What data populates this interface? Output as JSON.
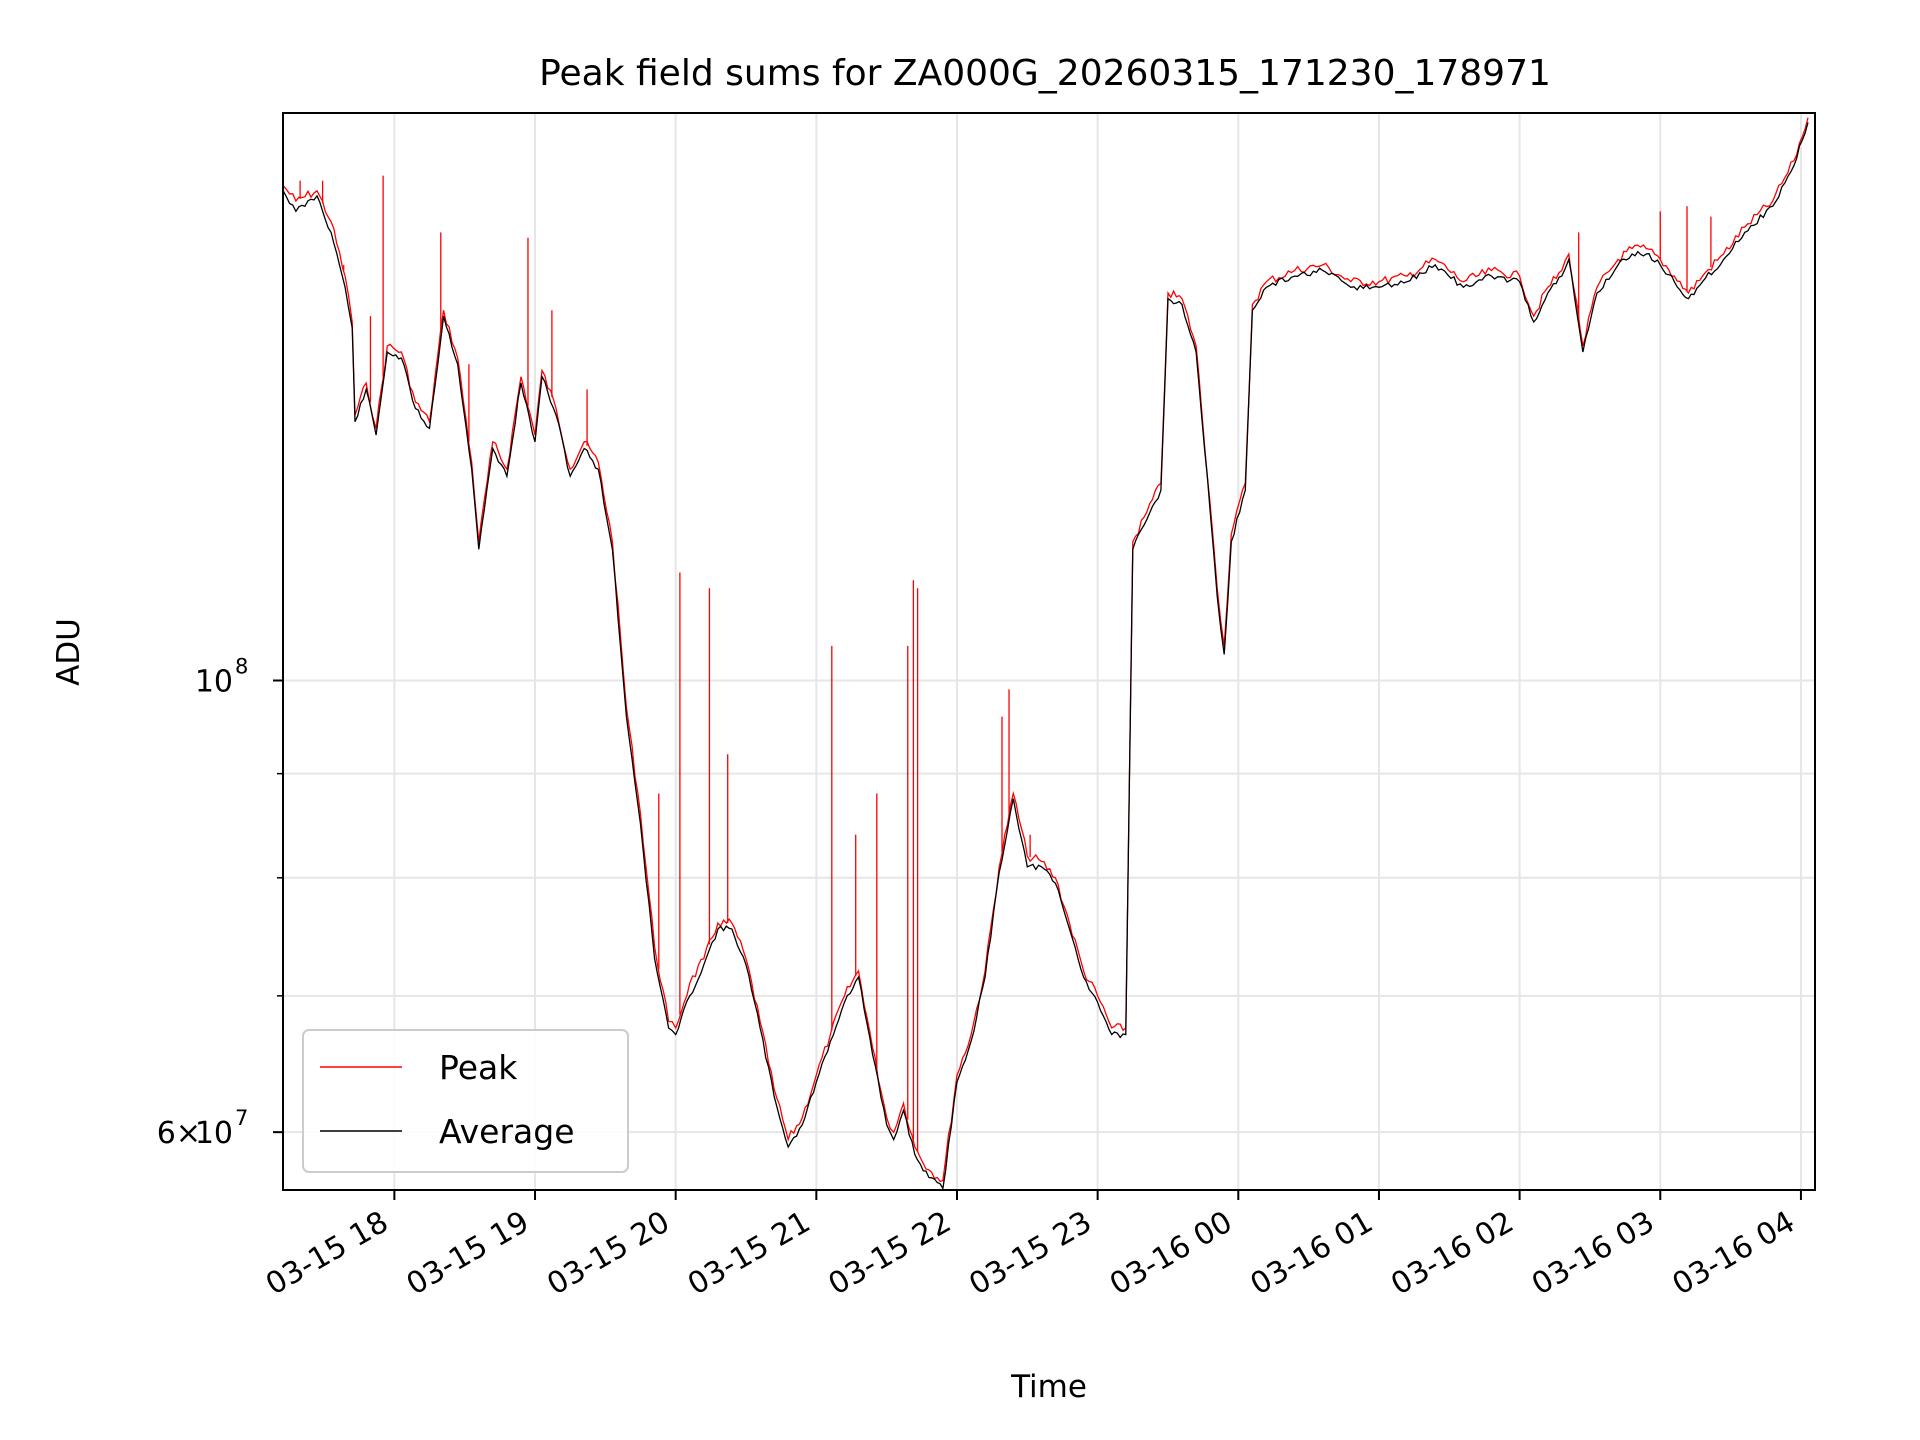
{
  "chart_data": {
    "type": "line",
    "title": "Peak field sums for ZA000G_20260315_171230_178971",
    "xlabel": "Time",
    "ylabel": "ADU",
    "y_scale": "log",
    "xlim_hours": [
      17.2083,
      28.1
    ],
    "ylim": [
      56200000,
      190000000
    ],
    "grid": true,
    "legend_position": "lower-left",
    "x_ticks": [
      {
        "hour": 18,
        "label": "03-15 18"
      },
      {
        "hour": 19,
        "label": "03-15 19"
      },
      {
        "hour": 20,
        "label": "03-15 20"
      },
      {
        "hour": 21,
        "label": "03-15 21"
      },
      {
        "hour": 22,
        "label": "03-15 22"
      },
      {
        "hour": 23,
        "label": "03-15 23"
      },
      {
        "hour": 24,
        "label": "03-16 00"
      },
      {
        "hour": 25,
        "label": "03-16 01"
      },
      {
        "hour": 26,
        "label": "03-16 02"
      },
      {
        "hour": 27,
        "label": "03-16 03"
      },
      {
        "hour": 28,
        "label": "03-16 04"
      }
    ],
    "y_major_ticks": [
      {
        "value": 60000000,
        "mantissa": "6",
        "exponent": "7"
      },
      {
        "value": 100000000,
        "mantissa": "",
        "exponent": "8"
      }
    ],
    "y_minor_ticks": [
      70000000,
      80000000,
      90000000
    ],
    "series": [
      {
        "name": "Peak",
        "color": "#ff0000",
        "points": [
          [
            17.21,
            175000000
          ],
          [
            17.3,
            172000000
          ],
          [
            17.45,
            174000000
          ],
          [
            17.55,
            168000000
          ],
          [
            17.65,
            158000000
          ],
          [
            17.7,
            150000000
          ],
          [
            17.72,
            135000000
          ],
          [
            17.8,
            140000000
          ],
          [
            17.87,
            133000000
          ],
          [
            17.95,
            146000000
          ],
          [
            18.05,
            145000000
          ],
          [
            18.15,
            137000000
          ],
          [
            18.25,
            134000000
          ],
          [
            18.35,
            152000000
          ],
          [
            18.45,
            144000000
          ],
          [
            18.55,
            128000000
          ],
          [
            18.6,
            117000000
          ],
          [
            18.7,
            131000000
          ],
          [
            18.8,
            127000000
          ],
          [
            18.9,
            141000000
          ],
          [
            19.0,
            132000000
          ],
          [
            19.05,
            142000000
          ],
          [
            19.15,
            136000000
          ],
          [
            19.25,
            127000000
          ],
          [
            19.35,
            131000000
          ],
          [
            19.45,
            128000000
          ],
          [
            19.55,
            117000000
          ],
          [
            19.65,
            97000000
          ],
          [
            19.75,
            86000000
          ],
          [
            19.85,
            74000000
          ],
          [
            19.95,
            68000000
          ],
          [
            20.0,
            67500000
          ],
          [
            20.1,
            71000000
          ],
          [
            20.2,
            73000000
          ],
          [
            20.3,
            76000000
          ],
          [
            20.4,
            76000000
          ],
          [
            20.5,
            73000000
          ],
          [
            20.6,
            68000000
          ],
          [
            20.7,
            63000000
          ],
          [
            20.8,
            59500000
          ],
          [
            20.9,
            61000000
          ],
          [
            21.0,
            64000000
          ],
          [
            21.1,
            67000000
          ],
          [
            21.2,
            70000000
          ],
          [
            21.3,
            72000000
          ],
          [
            21.4,
            66000000
          ],
          [
            21.5,
            61000000
          ],
          [
            21.55,
            60000000
          ],
          [
            21.62,
            62000000
          ],
          [
            21.7,
            59000000
          ],
          [
            21.8,
            57500000
          ],
          [
            21.9,
            56800000
          ],
          [
            22.0,
            64000000
          ],
          [
            22.1,
            67000000
          ],
          [
            22.2,
            72000000
          ],
          [
            22.3,
            81000000
          ],
          [
            22.4,
            88000000
          ],
          [
            22.5,
            82000000
          ],
          [
            22.6,
            81500000
          ],
          [
            22.7,
            80000000
          ],
          [
            22.8,
            76000000
          ],
          [
            22.9,
            72000000
          ],
          [
            23.0,
            70000000
          ],
          [
            23.1,
            67500000
          ],
          [
            23.2,
            67500000
          ],
          [
            23.25,
            117000000
          ],
          [
            23.35,
            121000000
          ],
          [
            23.45,
            125000000
          ],
          [
            23.5,
            155000000
          ],
          [
            23.6,
            154000000
          ],
          [
            23.7,
            146000000
          ],
          [
            23.8,
            122000000
          ],
          [
            23.85,
            111000000
          ],
          [
            23.9,
            104000000
          ],
          [
            23.95,
            118000000
          ],
          [
            24.05,
            125000000
          ],
          [
            24.1,
            153000000
          ],
          [
            24.2,
            157000000
          ],
          [
            24.4,
            159000000
          ],
          [
            24.6,
            160000000
          ],
          [
            24.8,
            157000000
          ],
          [
            25.0,
            157000000
          ],
          [
            25.2,
            158000000
          ],
          [
            25.4,
            161000000
          ],
          [
            25.6,
            157000000
          ],
          [
            25.8,
            159000000
          ],
          [
            26.0,
            158000000
          ],
          [
            26.1,
            151000000
          ],
          [
            26.2,
            156000000
          ],
          [
            26.3,
            159000000
          ],
          [
            26.35,
            162000000
          ],
          [
            26.45,
            146000000
          ],
          [
            26.55,
            156000000
          ],
          [
            26.7,
            161000000
          ],
          [
            26.8,
            163000000
          ],
          [
            26.9,
            163000000
          ],
          [
            27.0,
            161000000
          ],
          [
            27.1,
            158000000
          ],
          [
            27.2,
            155000000
          ],
          [
            27.3,
            158000000
          ],
          [
            27.45,
            162000000
          ],
          [
            27.6,
            167000000
          ],
          [
            27.8,
            172000000
          ],
          [
            27.95,
            180000000
          ],
          [
            28.05,
            189000000
          ]
        ],
        "spikes": [
          [
            17.33,
            176000000
          ],
          [
            17.49,
            176000000
          ],
          [
            17.64,
            160000000
          ],
          [
            17.83,
            151000000
          ],
          [
            17.92,
            177000000
          ],
          [
            18.33,
            166000000
          ],
          [
            18.53,
            143000000
          ],
          [
            18.95,
            165000000
          ],
          [
            19.12,
            152000000
          ],
          [
            19.37,
            139000000
          ],
          [
            19.88,
            88000000
          ],
          [
            20.03,
            113000000
          ],
          [
            20.24,
            111000000
          ],
          [
            20.37,
            92000000
          ],
          [
            21.11,
            104000000
          ],
          [
            21.28,
            84000000
          ],
          [
            21.43,
            88000000
          ],
          [
            21.65,
            104000000
          ],
          [
            21.69,
            112000000
          ],
          [
            21.72,
            111000000
          ],
          [
            22.32,
            96000000
          ],
          [
            22.37,
            99000000
          ],
          [
            22.52,
            84000000
          ],
          [
            27.0,
            170000000
          ],
          [
            27.19,
            171000000
          ],
          [
            27.36,
            169000000
          ],
          [
            26.42,
            166000000
          ]
        ]
      },
      {
        "name": "Average",
        "color": "#000000",
        "points": [
          [
            17.21,
            174000000
          ],
          [
            17.3,
            170000000
          ],
          [
            17.45,
            173000000
          ],
          [
            17.55,
            166000000
          ],
          [
            17.65,
            156000000
          ],
          [
            17.7,
            149000000
          ],
          [
            17.72,
            134000000
          ],
          [
            17.8,
            139000000
          ],
          [
            17.87,
            132000000
          ],
          [
            17.95,
            145000000
          ],
          [
            18.05,
            144000000
          ],
          [
            18.15,
            136000000
          ],
          [
            18.25,
            133000000
          ],
          [
            18.35,
            151000000
          ],
          [
            18.45,
            143000000
          ],
          [
            18.55,
            127000000
          ],
          [
            18.6,
            116000000
          ],
          [
            18.7,
            130000000
          ],
          [
            18.8,
            126000000
          ],
          [
            18.9,
            140000000
          ],
          [
            19.0,
            131000000
          ],
          [
            19.05,
            141000000
          ],
          [
            19.15,
            135000000
          ],
          [
            19.25,
            126000000
          ],
          [
            19.35,
            130000000
          ],
          [
            19.45,
            127000000
          ],
          [
            19.55,
            116000000
          ],
          [
            19.65,
            96000000
          ],
          [
            19.75,
            85000000
          ],
          [
            19.85,
            73000000
          ],
          [
            19.95,
            67500000
          ],
          [
            20.0,
            67000000
          ],
          [
            20.1,
            70000000
          ],
          [
            20.2,
            72500000
          ],
          [
            20.3,
            75500000
          ],
          [
            20.4,
            75500000
          ],
          [
            20.5,
            72500000
          ],
          [
            20.6,
            67500000
          ],
          [
            20.7,
            62500000
          ],
          [
            20.8,
            59000000
          ],
          [
            20.9,
            60500000
          ],
          [
            21.0,
            63500000
          ],
          [
            21.1,
            66500000
          ],
          [
            21.2,
            69500000
          ],
          [
            21.3,
            71500000
          ],
          [
            21.4,
            65500000
          ],
          [
            21.5,
            60500000
          ],
          [
            21.55,
            59500000
          ],
          [
            21.62,
            61500000
          ],
          [
            21.7,
            58500000
          ],
          [
            21.8,
            57000000
          ],
          [
            21.9,
            56300000
          ],
          [
            22.0,
            63500000
          ],
          [
            22.1,
            66500000
          ],
          [
            22.2,
            71500000
          ],
          [
            22.3,
            80500000
          ],
          [
            22.4,
            87500000
          ],
          [
            22.5,
            81000000
          ],
          [
            22.6,
            81000000
          ],
          [
            22.7,
            79500000
          ],
          [
            22.8,
            75500000
          ],
          [
            22.9,
            71500000
          ],
          [
            23.0,
            69500000
          ],
          [
            23.1,
            67000000
          ],
          [
            23.2,
            67000000
          ],
          [
            23.25,
            116000000
          ],
          [
            23.35,
            120000000
          ],
          [
            23.45,
            124000000
          ],
          [
            23.5,
            154000000
          ],
          [
            23.6,
            153000000
          ],
          [
            23.7,
            145000000
          ],
          [
            23.8,
            121000000
          ],
          [
            23.85,
            110000000
          ],
          [
            23.9,
            103000000
          ],
          [
            23.95,
            117000000
          ],
          [
            24.05,
            124000000
          ],
          [
            24.1,
            152000000
          ],
          [
            24.2,
            156000000
          ],
          [
            24.4,
            158000000
          ],
          [
            24.6,
            159000000
          ],
          [
            24.8,
            156000000
          ],
          [
            25.0,
            156000000
          ],
          [
            25.2,
            157000000
          ],
          [
            25.4,
            160000000
          ],
          [
            25.6,
            156000000
          ],
          [
            25.8,
            158000000
          ],
          [
            26.0,
            157000000
          ],
          [
            26.1,
            150000000
          ],
          [
            26.2,
            155000000
          ],
          [
            26.3,
            158000000
          ],
          [
            26.35,
            161000000
          ],
          [
            26.45,
            145000000
          ],
          [
            26.55,
            155000000
          ],
          [
            26.7,
            160000000
          ],
          [
            26.8,
            162000000
          ],
          [
            26.9,
            162000000
          ],
          [
            27.0,
            160000000
          ],
          [
            27.1,
            157000000
          ],
          [
            27.2,
            154000000
          ],
          [
            27.3,
            157000000
          ],
          [
            27.45,
            161000000
          ],
          [
            27.6,
            166000000
          ],
          [
            27.8,
            171000000
          ],
          [
            27.95,
            179000000
          ],
          [
            28.05,
            188000000
          ]
        ]
      }
    ]
  }
}
